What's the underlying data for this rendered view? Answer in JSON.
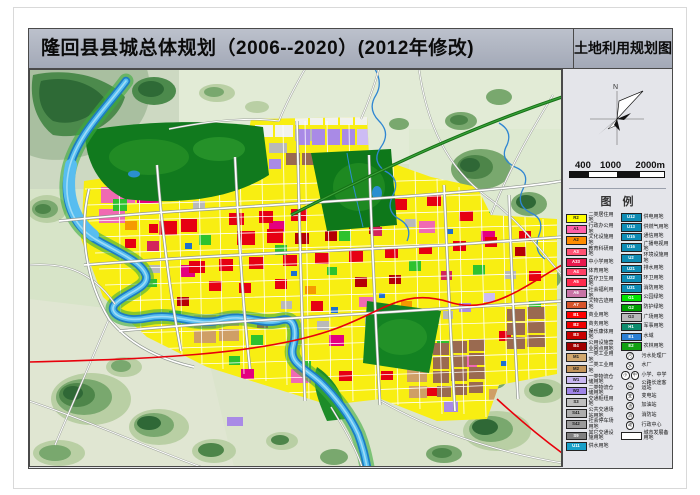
{
  "title": {
    "main": "隆回县县城总体规划（2006--2020）(2012年修改)",
    "sheet": "土地利用规划图"
  },
  "compass": {
    "north_label": "N"
  },
  "scalebar": {
    "t1": "400",
    "t2": "1000",
    "t3": "2000m"
  },
  "legend": {
    "header": "图　例",
    "left": [
      {
        "code": "R2",
        "label": "二类居住用地",
        "color": "#ffff00"
      },
      {
        "code": "A1",
        "label": "行政办公用地",
        "color": "#ff5fa8"
      },
      {
        "code": "A2",
        "label": "文化设施用地",
        "color": "#ff8c00"
      },
      {
        "code": "A3",
        "label": "教育科研用地",
        "color": "#ff5273"
      },
      {
        "code": "A33",
        "label": "中小学用地",
        "color": "#e8184e"
      },
      {
        "code": "A4",
        "label": "体育用地",
        "color": "#ff4066"
      },
      {
        "code": "A5",
        "label": "医疗卫生用地",
        "color": "#ff2c4e"
      },
      {
        "code": "A6",
        "label": "社会福利用地",
        "color": "#c873a5"
      },
      {
        "code": "A7",
        "label": "文物古迹用地",
        "color": "#d7542b"
      },
      {
        "code": "B1",
        "label": "商业用地",
        "color": "#ff0000"
      },
      {
        "code": "B2",
        "label": "商务用地",
        "color": "#ee0000"
      },
      {
        "code": "B3",
        "label": "娱乐康体用地",
        "color": "#c80000"
      },
      {
        "code": "B4",
        "label": "公用设施营业网点用地",
        "color": "#a00000"
      },
      {
        "code": "M1",
        "label": "一类工业用地",
        "color": "#d2a86e"
      },
      {
        "code": "M2",
        "label": "二类工业用地",
        "color": "#c4955a"
      },
      {
        "code": "W1",
        "label": "一类物流仓储用地",
        "color": "#c9b8f2"
      },
      {
        "code": "W2",
        "label": "二类物流仓储用地",
        "color": "#9f85e8"
      },
      {
        "code": "S3",
        "label": "交通枢纽用地",
        "color": "#bebebe"
      },
      {
        "code": "S41",
        "label": "公共交通场站用地",
        "color": "#acacac"
      },
      {
        "code": "S42",
        "label": "社会停车场用地",
        "color": "#9a9a9a"
      },
      {
        "code": "S9",
        "label": "其它交通设施用地",
        "color": "#808080"
      },
      {
        "code": "U11",
        "label": "供水用地",
        "color": "#18a0c8"
      }
    ],
    "right": [
      {
        "code": "U12",
        "label": "供电用地",
        "color": "#0e8cb4"
      },
      {
        "code": "U13",
        "label": "供燃气用地",
        "color": "#0e8cb4"
      },
      {
        "code": "U15",
        "label": "通信用地",
        "color": "#0e8cb4"
      },
      {
        "code": "U16",
        "label": "广播电视用地",
        "color": "#0e8cb4"
      },
      {
        "code": "U2",
        "label": "环境设施用地",
        "color": "#0e8cb4"
      },
      {
        "code": "U21",
        "label": "排水用地",
        "color": "#0e8cb4"
      },
      {
        "code": "U22",
        "label": "环卫用地",
        "color": "#0e8cb4"
      },
      {
        "code": "U31",
        "label": "消防用地",
        "color": "#0e8cb4"
      },
      {
        "code": "G1",
        "label": "公园绿地",
        "color": "#00e400"
      },
      {
        "code": "G2",
        "label": "防护绿地",
        "color": "#00a000"
      },
      {
        "code": "G3",
        "label": "广场用地",
        "color": "#b9b9b9"
      },
      {
        "code": "H1",
        "label": "军事用地",
        "color": "#0e8c6e"
      },
      {
        "code": "E1",
        "label": "水域",
        "color": "#2b7fd4"
      },
      {
        "code": "E2",
        "label": "农林用地",
        "color": "#12a012"
      }
    ],
    "symbols": [
      {
        "glyph": "污",
        "label": "污水处理厂"
      },
      {
        "glyph": "水",
        "label": "水厂"
      },
      {
        "glyph": "小",
        "glyph2": "中",
        "label": "小学、中学"
      },
      {
        "glyph": "运",
        "label": "公路长途客运站"
      },
      {
        "glyph": "变",
        "label": "变电站"
      },
      {
        "glyph": "油",
        "label": "加油站"
      },
      {
        "glyph": "消",
        "label": "消防站"
      },
      {
        "glyph": "政",
        "label": "行政中心"
      }
    ],
    "reserve": {
      "label": "城市发展备用地",
      "color": "#ffffff"
    }
  },
  "colors": {
    "title_bar": "#aeb4c2",
    "panel_bg": "#e4e5ea",
    "river": "#1d7dc2",
    "residential_yellow": "#f8ee12",
    "rural_green": "#d7e4c8",
    "highway_red": "#e8000b"
  }
}
